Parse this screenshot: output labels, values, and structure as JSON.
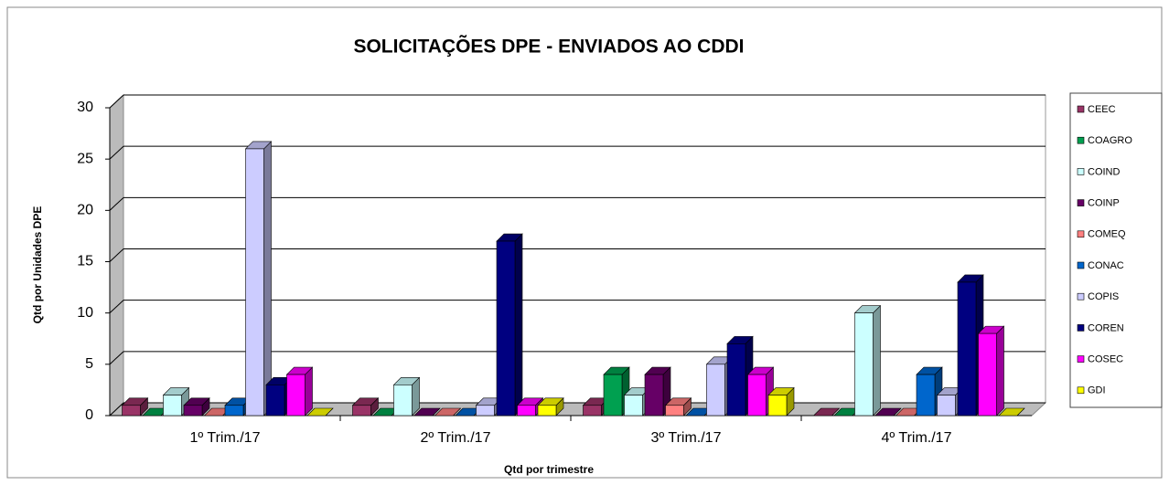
{
  "chart_data": {
    "type": "bar3d",
    "title": "SOLICITAÇÕES DPE - ENVIADOS AO CDDI",
    "y_label": "Qtd por Unidades DPE",
    "x_label": "Qtd por trimestre",
    "categories": [
      "1º Trim./17",
      "2º Trim./17",
      "3º Trim./17",
      "4º Trim./17"
    ],
    "series": [
      {
        "name": "CEEC",
        "color": "#993366",
        "values": [
          1,
          1,
          1,
          0
        ]
      },
      {
        "name": "COAGRO",
        "color": "#00a050",
        "values": [
          0,
          0,
          4,
          0
        ]
      },
      {
        "name": "COIND",
        "color": "#ccffff",
        "values": [
          2,
          3,
          2,
          10
        ]
      },
      {
        "name": "COINP",
        "color": "#660066",
        "values": [
          1,
          0,
          4,
          0
        ]
      },
      {
        "name": "COMEQ",
        "color": "#ff8080",
        "values": [
          0,
          0,
          1,
          0
        ]
      },
      {
        "name": "CONAC",
        "color": "#0066cc",
        "values": [
          1,
          0,
          0,
          4
        ]
      },
      {
        "name": "COPIS",
        "color": "#ccccff",
        "values": [
          26,
          1,
          5,
          2
        ]
      },
      {
        "name": "COREN",
        "color": "#000080",
        "values": [
          3,
          17,
          7,
          13
        ]
      },
      {
        "name": "COSEC",
        "color": "#ff00ff",
        "values": [
          4,
          1,
          4,
          8
        ]
      },
      {
        "name": "GDI",
        "color": "#ffff00",
        "values": [
          0,
          1,
          2,
          0
        ]
      }
    ],
    "ylim": [
      0,
      30
    ],
    "yticks": [
      0,
      5,
      10,
      15,
      20,
      25,
      30
    ],
    "grid": true,
    "legend": "right"
  }
}
